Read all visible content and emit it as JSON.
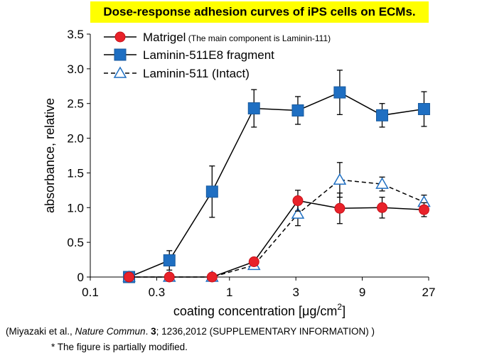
{
  "chart_data": {
    "type": "line",
    "title": "Dose-response adhesion curves of iPS cells on ECMs.",
    "xlabel": "coating concentration [μg/cm",
    "xlabel_sup": "2",
    "xlabel_end": "]",
    "ylabel": "absorbance, relative",
    "x_scale": "log",
    "xlim": [
      0.1,
      27
    ],
    "ylim": [
      0,
      3.5
    ],
    "x_ticks": [
      0.1,
      0.3,
      1,
      3,
      9,
      27
    ],
    "x_tick_labels": [
      "0.1",
      "0.3",
      "1",
      "3",
      "9",
      "27"
    ],
    "y_ticks": [
      0,
      0.5,
      1.0,
      1.5,
      2.0,
      2.5,
      3.0,
      3.5
    ],
    "y_tick_labels": [
      "0",
      "0.5",
      "1.0",
      "1.5",
      "2.0",
      "2.5",
      "3.0",
      "3.5"
    ],
    "x": [
      0.19,
      0.37,
      0.75,
      1.5,
      3.1,
      6.2,
      12.5,
      25
    ],
    "grid": false,
    "legend_position": "top-left",
    "series": [
      {
        "name": "Matrigel",
        "name_note": "(The main component is Laminin-111)",
        "marker": "circle",
        "line": "solid",
        "color": "#e8222a",
        "y": [
          0,
          0,
          0,
          0.22,
          1.1,
          0.99,
          1.0,
          0.97
        ],
        "err": [
          0,
          0,
          0,
          0.03,
          0.15,
          0.22,
          0.15,
          0.1
        ]
      },
      {
        "name": "Laminin-511E8 fragment",
        "name_note": "",
        "marker": "square",
        "line": "solid",
        "color": "#1f6fc2",
        "y": [
          0,
          0.24,
          1.23,
          2.43,
          2.4,
          2.66,
          2.33,
          2.42
        ],
        "err": [
          0,
          0.14,
          0.37,
          0.27,
          0.2,
          0.32,
          0.17,
          0.25
        ]
      },
      {
        "name": "Laminin-511 (Intact)",
        "name_note": "",
        "marker": "triangle-open",
        "line": "dashed",
        "color": "#1f6fc2",
        "y": [
          0,
          0,
          0,
          0.17,
          0.91,
          1.4,
          1.34,
          1.08
        ],
        "err": [
          0,
          0,
          0,
          0.05,
          0.17,
          0.25,
          0.1,
          0.1
        ]
      }
    ]
  },
  "source": {
    "prefix": "(Miyazaki et al., ",
    "journal": "Nature Commun",
    "dot": ". ",
    "volume": "3",
    "rest": "; 1236,2012   (SUPPLEMENTARY INFORMATION) )"
  },
  "note": "* The figure is partially modified."
}
